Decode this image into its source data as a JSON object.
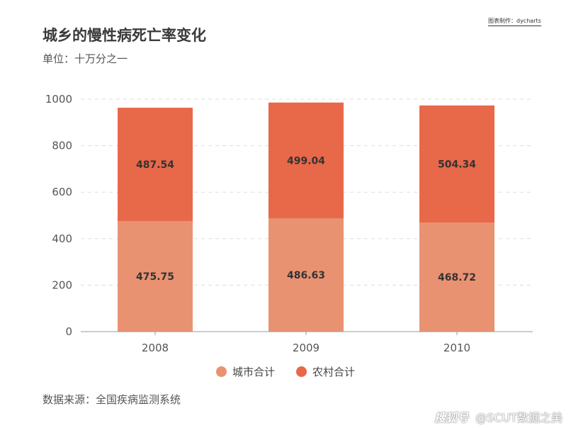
{
  "header": {
    "title": "城乡的慢性病死亡率变化",
    "subtitle": "单位：十万分之一",
    "credit": "图表制作：dycharts"
  },
  "footer": {
    "source": "数据来源：全国疾病监测系统"
  },
  "watermark": {
    "logo": "搜狐号",
    "handle": "@SCUT数据之美"
  },
  "colors": {
    "urban": "#E99272",
    "rural": "#E8684A",
    "grid": "#dddddd",
    "axis": "#999999"
  },
  "chart_data": {
    "type": "bar",
    "stacked": true,
    "categories": [
      "2008",
      "2009",
      "2010"
    ],
    "series": [
      {
        "name": "城市合计",
        "values": [
          475.75,
          486.63,
          468.72
        ]
      },
      {
        "name": "农村合计",
        "values": [
          487.54,
          499.04,
          504.34
        ]
      }
    ],
    "yticks": [
      0,
      200,
      400,
      600,
      800,
      1000
    ],
    "ylim": [
      0,
      1000
    ],
    "grid": true,
    "legend_position": "bottom"
  }
}
